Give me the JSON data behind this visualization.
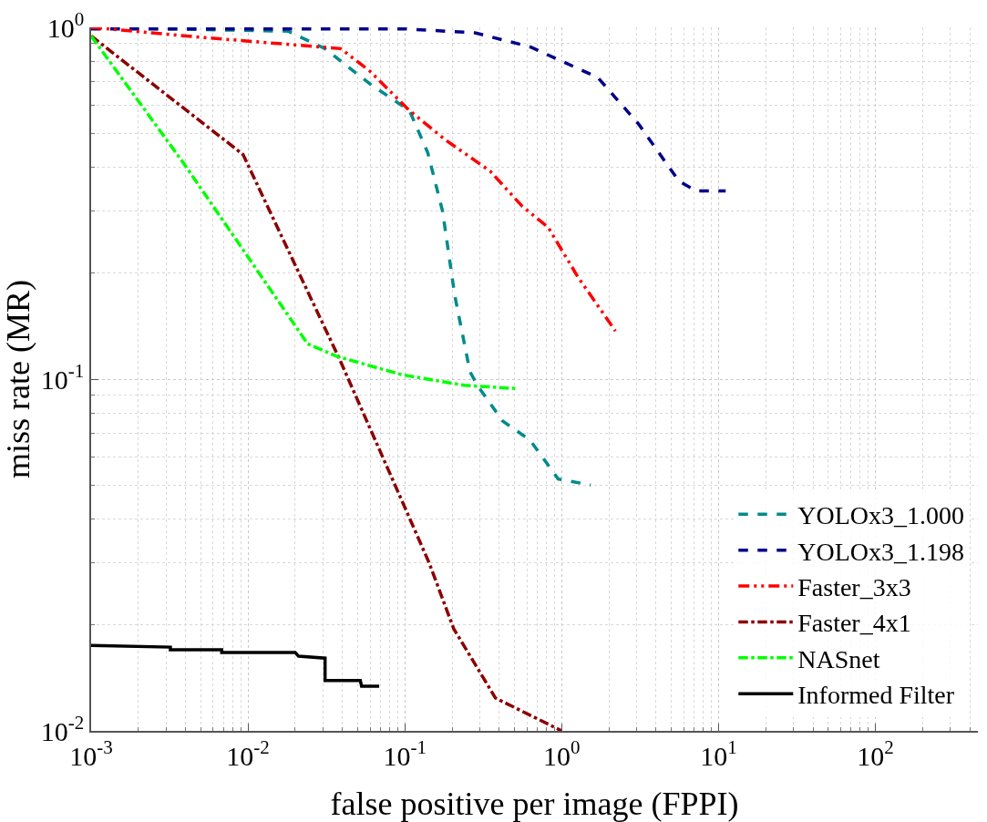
{
  "chart_data": {
    "type": "line",
    "xlabel": "false positive per image (FPPI)",
    "ylabel": "miss rate (MR)",
    "log": "xy",
    "grid": true,
    "legend": "bottom right",
    "xlim": [
      0.001,
      450
    ],
    "ylim": [
      0.01,
      1
    ],
    "xticks": [
      {
        "value": 0.001,
        "label": "10$^{-3}$"
      },
      {
        "value": 0.01,
        "label": "10$^{-2}$"
      },
      {
        "value": 0.1,
        "label": "10$^{-1}$"
      },
      {
        "value": 1,
        "label": "10$^{0}$"
      },
      {
        "value": 10,
        "label": "10$^{1}$"
      },
      {
        "value": 100,
        "label": "10$^{2}$"
      }
    ],
    "yticks": [
      {
        "value": 0.01,
        "label": "10$^{-2}$"
      },
      {
        "value": 0.1,
        "label": "10$^{-1}$"
      },
      {
        "value": 1,
        "label": "10$^{0}$"
      }
    ],
    "series": [
      {
        "name": "YOLOx3_1.000",
        "color": "#008b8b",
        "line_style": "dashed",
        "x": [
          0.001,
          0.018,
          0.031,
          0.06,
          0.107,
          0.14,
          0.174,
          0.208,
          0.26,
          0.29,
          0.42,
          0.63,
          0.95,
          1.53
        ],
        "values": [
          1.0,
          0.975,
          0.87,
          0.69,
          0.58,
          0.44,
          0.3,
          0.173,
          0.105,
          0.096,
          0.076,
          0.067,
          0.052,
          0.05
        ]
      },
      {
        "name": "YOLOx3_1.198",
        "color": "#00008b",
        "line_style": "dashed",
        "x": [
          0.001,
          0.1,
          0.28,
          0.63,
          1.7,
          3.1,
          5.6,
          7.2,
          11.1
        ],
        "values": [
          0.99,
          0.99,
          0.965,
          0.88,
          0.72,
          0.53,
          0.365,
          0.343,
          0.343
        ]
      },
      {
        "name": "Faster_3x3",
        "color": "#ff0000",
        "line_style": "dashdotdot",
        "x": [
          0.001,
          0.0053,
          0.039,
          0.06,
          0.107,
          0.18,
          0.35,
          0.56,
          0.82,
          1.27,
          2.2
        ],
        "values": [
          1.0,
          0.935,
          0.87,
          0.75,
          0.58,
          0.48,
          0.39,
          0.31,
          0.27,
          0.195,
          0.137
        ]
      },
      {
        "name": "Faster_4x1",
        "color": "#8b0000",
        "line_style": "dashdot",
        "x": [
          0.001,
          0.0093,
          0.038,
          0.096,
          0.143,
          0.205,
          0.378,
          1.0
        ],
        "values": [
          0.945,
          0.435,
          0.115,
          0.045,
          0.03,
          0.0195,
          0.0124,
          0.01
        ]
      },
      {
        "name": "NASnet",
        "color": "#00ff00",
        "line_style": "dashdot",
        "x": [
          0.001,
          0.0039,
          0.024,
          0.037,
          0.095,
          0.24,
          0.51
        ],
        "values": [
          0.945,
          0.41,
          0.126,
          0.116,
          0.103,
          0.096,
          0.094
        ]
      },
      {
        "name": "Informed Filter",
        "color": "#000000",
        "line_style": "solid",
        "x": [
          0.001,
          0.0032,
          0.0032,
          0.0068,
          0.0068,
          0.02,
          0.021,
          0.031,
          0.031,
          0.052,
          0.053,
          0.0686
        ],
        "values": [
          0.0175,
          0.0173,
          0.017,
          0.017,
          0.0167,
          0.0167,
          0.0163,
          0.0161,
          0.0139,
          0.0139,
          0.0134,
          0.0134
        ]
      }
    ]
  }
}
